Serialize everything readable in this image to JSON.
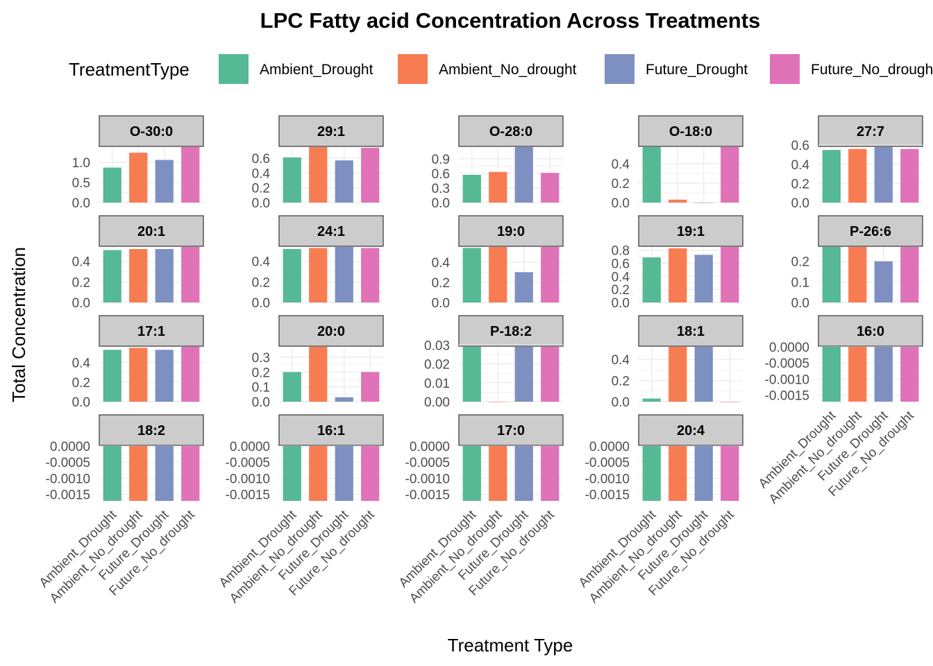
{
  "colors": {
    "Ambient_Drought": "#56B995",
    "Ambient_No_drought": "#F87C52",
    "Future_Drought": "#7E90C2",
    "Future_No_drought": "#E072B8",
    "strip_fill": "#cccccc",
    "grid": "#ebebeb"
  },
  "chart_data": {
    "type": "bar",
    "title": "LPC  Fatty acid Concentration Across Treatments",
    "xlabel": "Treatment Type",
    "ylabel": "Total Concentration",
    "legend": {
      "title": "TreatmentType",
      "position": "top"
    },
    "grid": true,
    "categories": [
      "Ambient_Drought",
      "Ambient_No_drought",
      "Future_Drought",
      "Future_No_drought"
    ],
    "panels": [
      {
        "name": "O-30:0",
        "values": [
          0.87,
          1.24,
          1.06,
          1.38
        ],
        "ylim": [
          0,
          1.38
        ],
        "yticks": [
          "0.0",
          "0.5",
          "1.0"
        ],
        "tickvals": [
          0,
          0.5,
          1.0
        ]
      },
      {
        "name": "29:1",
        "values": [
          0.61,
          0.75,
          0.57,
          0.74
        ],
        "ylim": [
          0,
          0.75
        ],
        "yticks": [
          "0.0",
          "0.2",
          "0.4",
          "0.6"
        ],
        "tickvals": [
          0,
          0.2,
          0.4,
          0.6
        ]
      },
      {
        "name": "O-28:0",
        "values": [
          0.57,
          0.63,
          1.14,
          0.61
        ],
        "ylim": [
          0,
          1.14
        ],
        "yticks": [
          "0.0",
          "0.3",
          "0.6",
          "0.9"
        ],
        "tickvals": [
          0,
          0.3,
          0.6,
          0.9
        ]
      },
      {
        "name": "O-18:0",
        "values": [
          0.57,
          0.03,
          0.0,
          0.57
        ],
        "ylim": [
          0,
          0.57
        ],
        "yticks": [
          "0.0",
          "0.2",
          "0.4"
        ],
        "tickvals": [
          0,
          0.2,
          0.4
        ]
      },
      {
        "name": "27:7",
        "values": [
          0.55,
          0.56,
          0.58,
          0.56
        ],
        "ylim": [
          0,
          0.58
        ],
        "yticks": [
          "0.0",
          "0.2",
          "0.4",
          "0.6"
        ],
        "tickvals": [
          0,
          0.2,
          0.4,
          0.6
        ]
      },
      {
        "name": "20:1",
        "values": [
          0.51,
          0.52,
          0.52,
          0.54
        ],
        "ylim": [
          0,
          0.54
        ],
        "yticks": [
          "0.0",
          "0.2",
          "0.4"
        ],
        "tickvals": [
          0,
          0.2,
          0.4
        ]
      },
      {
        "name": "24:1",
        "values": [
          0.52,
          0.53,
          0.54,
          0.53
        ],
        "ylim": [
          0,
          0.54
        ],
        "yticks": [
          "0.0",
          "0.2",
          "0.4"
        ],
        "tickvals": [
          0,
          0.2,
          0.4
        ]
      },
      {
        "name": "19:0",
        "values": [
          0.54,
          0.55,
          0.3,
          0.55
        ],
        "ylim": [
          0,
          0.55
        ],
        "yticks": [
          "0.0",
          "0.2",
          "0.4"
        ],
        "tickvals": [
          0,
          0.2,
          0.4
        ]
      },
      {
        "name": "19:1",
        "values": [
          0.69,
          0.83,
          0.73,
          0.85
        ],
        "ylim": [
          0,
          0.85
        ],
        "yticks": [
          "0.0",
          "0.2",
          "0.4",
          "0.6",
          "0.8"
        ],
        "tickvals": [
          0,
          0.2,
          0.4,
          0.6,
          0.8
        ]
      },
      {
        "name": "P-26:6",
        "values": [
          0.27,
          0.27,
          0.2,
          0.27
        ],
        "ylim": [
          0,
          0.27
        ],
        "yticks": [
          "0.0",
          "0.1",
          "0.2"
        ],
        "tickvals": [
          0,
          0.1,
          0.2
        ]
      },
      {
        "name": "17:1",
        "values": [
          0.53,
          0.55,
          0.53,
          0.56
        ],
        "ylim": [
          0,
          0.56
        ],
        "yticks": [
          "0.0",
          "0.2",
          "0.4"
        ],
        "tickvals": [
          0,
          0.2,
          0.4
        ]
      },
      {
        "name": "20:0",
        "values": [
          0.2,
          0.37,
          0.03,
          0.2
        ],
        "ylim": [
          0,
          0.37
        ],
        "yticks": [
          "0.0",
          "0.1",
          "0.2",
          "0.3"
        ],
        "tickvals": [
          0,
          0.1,
          0.2,
          0.3
        ]
      },
      {
        "name": "P-18:2",
        "values": [
          0.029,
          0.0,
          0.029,
          0.029
        ],
        "ylim": [
          0,
          0.029
        ],
        "yticks": [
          "0.00",
          "0.01",
          "0.02",
          "0.03"
        ],
        "tickvals": [
          0,
          0.01,
          0.02,
          0.03
        ]
      },
      {
        "name": "18:1",
        "values": [
          0.03,
          0.52,
          0.52,
          0.0
        ],
        "ylim": [
          0,
          0.52
        ],
        "yticks": [
          "0.0",
          "0.2",
          "0.4"
        ],
        "tickvals": [
          0,
          0.2,
          0.4
        ]
      },
      {
        "name": "16:0",
        "values": [
          -0.0017,
          -0.0017,
          -0.0017,
          -0.0017
        ],
        "ylim": [
          -0.0017,
          0
        ],
        "yticks": [
          "-0.0015",
          "-0.0010",
          "-0.0005",
          "0.0000"
        ],
        "tickvals": [
          -0.0015,
          -0.001,
          -0.0005,
          0
        ]
      },
      {
        "name": "18:2",
        "values": [
          -0.0017,
          -0.0017,
          -0.0017,
          -0.0017
        ],
        "ylim": [
          -0.0017,
          0
        ],
        "yticks": [
          "-0.0015",
          "-0.0010",
          "-0.0005",
          "0.0000"
        ],
        "tickvals": [
          -0.0015,
          -0.001,
          -0.0005,
          0
        ]
      },
      {
        "name": "16:1",
        "values": [
          -0.0017,
          -0.0017,
          -0.0017,
          -0.0017
        ],
        "ylim": [
          -0.0017,
          0
        ],
        "yticks": [
          "-0.0015",
          "-0.0010",
          "-0.0005",
          "0.0000"
        ],
        "tickvals": [
          -0.0015,
          -0.001,
          -0.0005,
          0
        ]
      },
      {
        "name": "17:0",
        "values": [
          -0.0017,
          -0.0017,
          -0.0017,
          -0.0017
        ],
        "ylim": [
          -0.0017,
          0
        ],
        "yticks": [
          "-0.0015",
          "-0.0010",
          "-0.0005",
          "0.0000"
        ],
        "tickvals": [
          -0.0015,
          -0.001,
          -0.0005,
          0
        ]
      },
      {
        "name": "20:4",
        "values": [
          -0.0017,
          -0.0017,
          -0.0017,
          -0.0017
        ],
        "ylim": [
          -0.0017,
          0
        ],
        "yticks": [
          "-0.0015",
          "-0.0010",
          "-0.0005",
          "0.0000"
        ],
        "tickvals": [
          -0.0015,
          -0.001,
          -0.0005,
          0
        ]
      }
    ]
  }
}
